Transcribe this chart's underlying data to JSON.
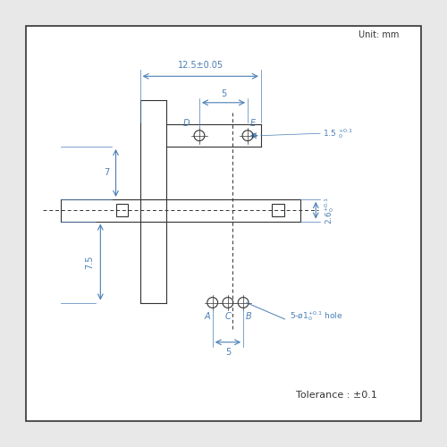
{
  "unit_text": "Unit: mm",
  "tolerance_text": "Tolerance : ±0.1",
  "dim_12_5": "12.5±0.05",
  "dim_5_top": "5",
  "dim_5_bot": "5",
  "dim_7": "7",
  "dim_7_5": "7.5",
  "dim_1_5": "1.5 ⁺⁰⋅¹₀",
  "dim_2_6": "2.6⁺⁰⋅¹₀",
  "label_D": "D",
  "label_E": "E",
  "label_A": "A",
  "label_C": "C",
  "label_B": "B",
  "hole_text": "5-ø1⁺⁰⋅¹ hole",
  "bg_color": "#e8e8e8",
  "box_color": "#ffffff",
  "line_color": "#333333",
  "dim_color": "#4a7fb5",
  "text_color": "#333333"
}
